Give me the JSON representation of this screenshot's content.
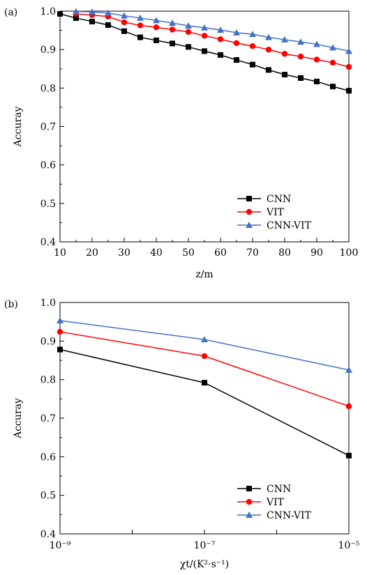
{
  "chart_data": [
    {
      "panel_label": "(a)",
      "type": "line",
      "xlabel": "z/m",
      "ylabel": "Accuray",
      "xlim": [
        10,
        100
      ],
      "ylim": [
        0.4,
        1.0
      ],
      "x_ticks": [
        "10",
        "20",
        "30",
        "40",
        "50",
        "60",
        "70",
        "80",
        "90",
        "100"
      ],
      "y_ticks": [
        "0.4",
        "0.5",
        "0.6",
        "0.7",
        "0.8",
        "0.9",
        "1.0"
      ],
      "legend_position": "bottom-right",
      "grid": false,
      "series": [
        {
          "name": "CNN",
          "color": "#000000",
          "marker": "square",
          "x": [
            10,
            15,
            20,
            25,
            30,
            35,
            40,
            45,
            50,
            55,
            60,
            65,
            70,
            75,
            80,
            85,
            90,
            95,
            100
          ],
          "y": [
            0.993,
            0.982,
            0.973,
            0.964,
            0.948,
            0.932,
            0.924,
            0.916,
            0.907,
            0.896,
            0.886,
            0.873,
            0.861,
            0.847,
            0.835,
            0.826,
            0.817,
            0.804,
            0.793
          ]
        },
        {
          "name": "VIT",
          "color": "#ff0000",
          "marker": "circle",
          "x": [
            15,
            20,
            25,
            30,
            35,
            40,
            45,
            50,
            55,
            60,
            65,
            70,
            75,
            80,
            85,
            90,
            95,
            100
          ],
          "y": [
            0.993,
            0.99,
            0.986,
            0.971,
            0.963,
            0.958,
            0.952,
            0.946,
            0.936,
            0.927,
            0.917,
            0.909,
            0.9,
            0.889,
            0.882,
            0.874,
            0.866,
            0.855
          ]
        },
        {
          "name": "CNN-VIT",
          "color": "#4472c4",
          "marker": "triangle",
          "x": [
            15,
            20,
            25,
            30,
            35,
            40,
            45,
            50,
            55,
            60,
            65,
            70,
            75,
            80,
            85,
            90,
            95,
            100
          ],
          "y": [
            0.999,
            0.998,
            0.995,
            0.988,
            0.982,
            0.976,
            0.969,
            0.962,
            0.957,
            0.951,
            0.944,
            0.94,
            0.932,
            0.926,
            0.92,
            0.914,
            0.905,
            0.896
          ]
        }
      ]
    },
    {
      "panel_label": "(b)",
      "type": "line",
      "xlabel": "χt/(K²·s⁻¹)",
      "ylabel": "Accuray",
      "x_scale": "log",
      "xlim": [
        1e-09,
        1e-05
      ],
      "ylim": [
        0.4,
        1.0
      ],
      "x_ticks": [
        "10⁻⁹",
        "10⁻⁷",
        "10⁻⁵"
      ],
      "y_ticks": [
        "0.4",
        "0.5",
        "0.6",
        "0.7",
        "0.8",
        "0.9",
        "1.0"
      ],
      "legend_position": "bottom-right",
      "grid": false,
      "series": [
        {
          "name": "CNN",
          "color": "#000000",
          "marker": "square",
          "x": [
            1e-09,
            1e-07,
            1e-05
          ],
          "y": [
            0.878,
            0.792,
            0.603
          ]
        },
        {
          "name": "VIT",
          "color": "#ff0000",
          "marker": "circle",
          "x": [
            1e-09,
            1e-07,
            1e-05
          ],
          "y": [
            0.924,
            0.861,
            0.731
          ]
        },
        {
          "name": "CNN-VIT",
          "color": "#4472c4",
          "marker": "triangle",
          "x": [
            1e-09,
            1e-07,
            1e-05
          ],
          "y": [
            0.953,
            0.904,
            0.825
          ]
        }
      ]
    }
  ]
}
